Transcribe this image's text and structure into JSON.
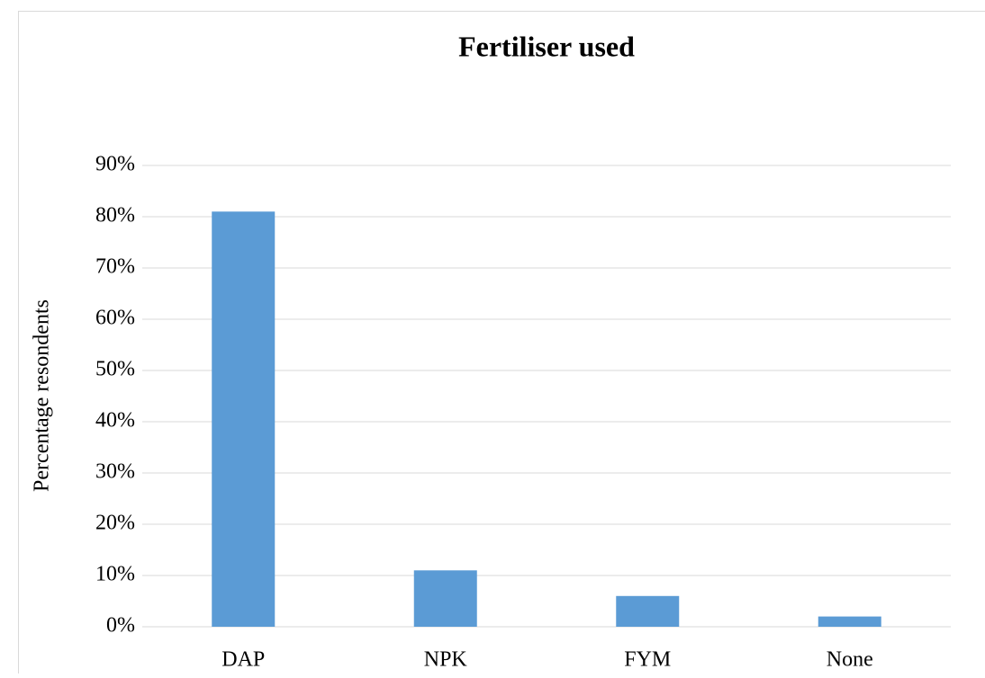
{
  "chart_data": {
    "type": "bar",
    "title": "Fertiliser used",
    "y_label": "Percentage resondents",
    "categories": [
      "DAP",
      "NPK",
      "FYM",
      "None"
    ],
    "values": [
      81,
      11,
      6,
      2
    ],
    "color": "#5b9bd5",
    "ylim": [
      0,
      90
    ],
    "yticks": [
      {
        "value": 0,
        "label": "0%"
      },
      {
        "value": 10,
        "label": "10%"
      },
      {
        "value": 20,
        "label": "20%"
      },
      {
        "value": 30,
        "label": "30%"
      },
      {
        "value": 40,
        "label": "40%"
      },
      {
        "value": 50,
        "label": "50%"
      },
      {
        "value": 60,
        "label": "60%"
      },
      {
        "value": 70,
        "label": "70%"
      },
      {
        "value": 80,
        "label": "80%"
      },
      {
        "value": 90,
        "label": "90%"
      }
    ],
    "grid": true
  }
}
